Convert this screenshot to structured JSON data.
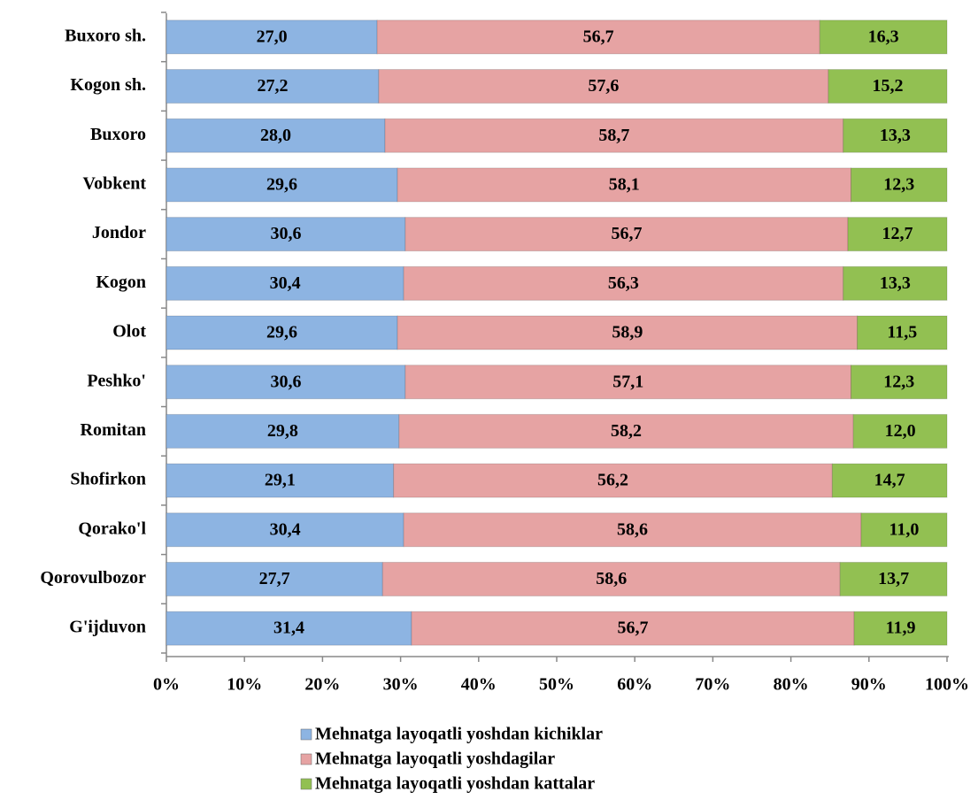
{
  "chart_data": {
    "type": "bar",
    "orientation": "horizontal",
    "stacked": true,
    "categories": [
      "Buxoro sh.",
      "Kogon sh.",
      "Buxoro",
      "Vobkent",
      "Jondor",
      "Kogon",
      "Olot",
      "Peshko'",
      "Romitan",
      "Shofirkon",
      "Qorako'l",
      "Qorovulbozor",
      "G'ijduvon"
    ],
    "series": [
      {
        "name": "Mehnatga layoqatli yoshdan kichiklar",
        "color": "#8db4e2",
        "values": [
          27.0,
          27.2,
          28.0,
          29.6,
          30.6,
          30.4,
          29.6,
          30.6,
          29.8,
          29.1,
          30.4,
          27.7,
          31.4
        ],
        "value_labels": [
          "27,0",
          "27,2",
          "28,0",
          "29,6",
          "30,6",
          "30,4",
          "29,6",
          "30,6",
          "29,8",
          "29,1",
          "30,4",
          "27,7",
          "31,4"
        ]
      },
      {
        "name": "Mehnatga layoqatli yoshdagilar",
        "color": "#e6a3a3",
        "values": [
          56.7,
          57.6,
          58.7,
          58.1,
          56.7,
          56.3,
          58.9,
          57.1,
          58.2,
          56.2,
          58.6,
          58.6,
          56.7
        ],
        "value_labels": [
          "56,7",
          "57,6",
          "58,7",
          "58,1",
          "56,7",
          "56,3",
          "58,9",
          "57,1",
          "58,2",
          "56,2",
          "58,6",
          "58,6",
          "56,7"
        ]
      },
      {
        "name": "Mehnatga layoqatli yoshdan kattalar",
        "color": "#92c052",
        "values": [
          16.3,
          15.2,
          13.3,
          12.3,
          12.7,
          13.3,
          11.5,
          12.3,
          12.0,
          14.7,
          11.0,
          13.7,
          11.9
        ],
        "value_labels": [
          "16,3",
          "15,2",
          "13,3",
          "12,3",
          "12,7",
          "13,3",
          "11,5",
          "12,3",
          "12,0",
          "14,7",
          "11,0",
          "13,7",
          "11,9"
        ]
      }
    ],
    "xlim": [
      0,
      100
    ],
    "xticks": [
      {
        "value": 0,
        "label": "0%"
      },
      {
        "value": 10,
        "label": "10%"
      },
      {
        "value": 20,
        "label": "20%"
      },
      {
        "value": 30,
        "label": "30%"
      },
      {
        "value": 40,
        "label": "40%"
      },
      {
        "value": 50,
        "label": "50%"
      },
      {
        "value": 60,
        "label": "60%"
      },
      {
        "value": 70,
        "label": "70%"
      },
      {
        "value": 80,
        "label": "80%"
      },
      {
        "value": 90,
        "label": "90%"
      },
      {
        "value": 100,
        "label": "100%"
      }
    ],
    "legend": "bottom",
    "grid": false
  }
}
